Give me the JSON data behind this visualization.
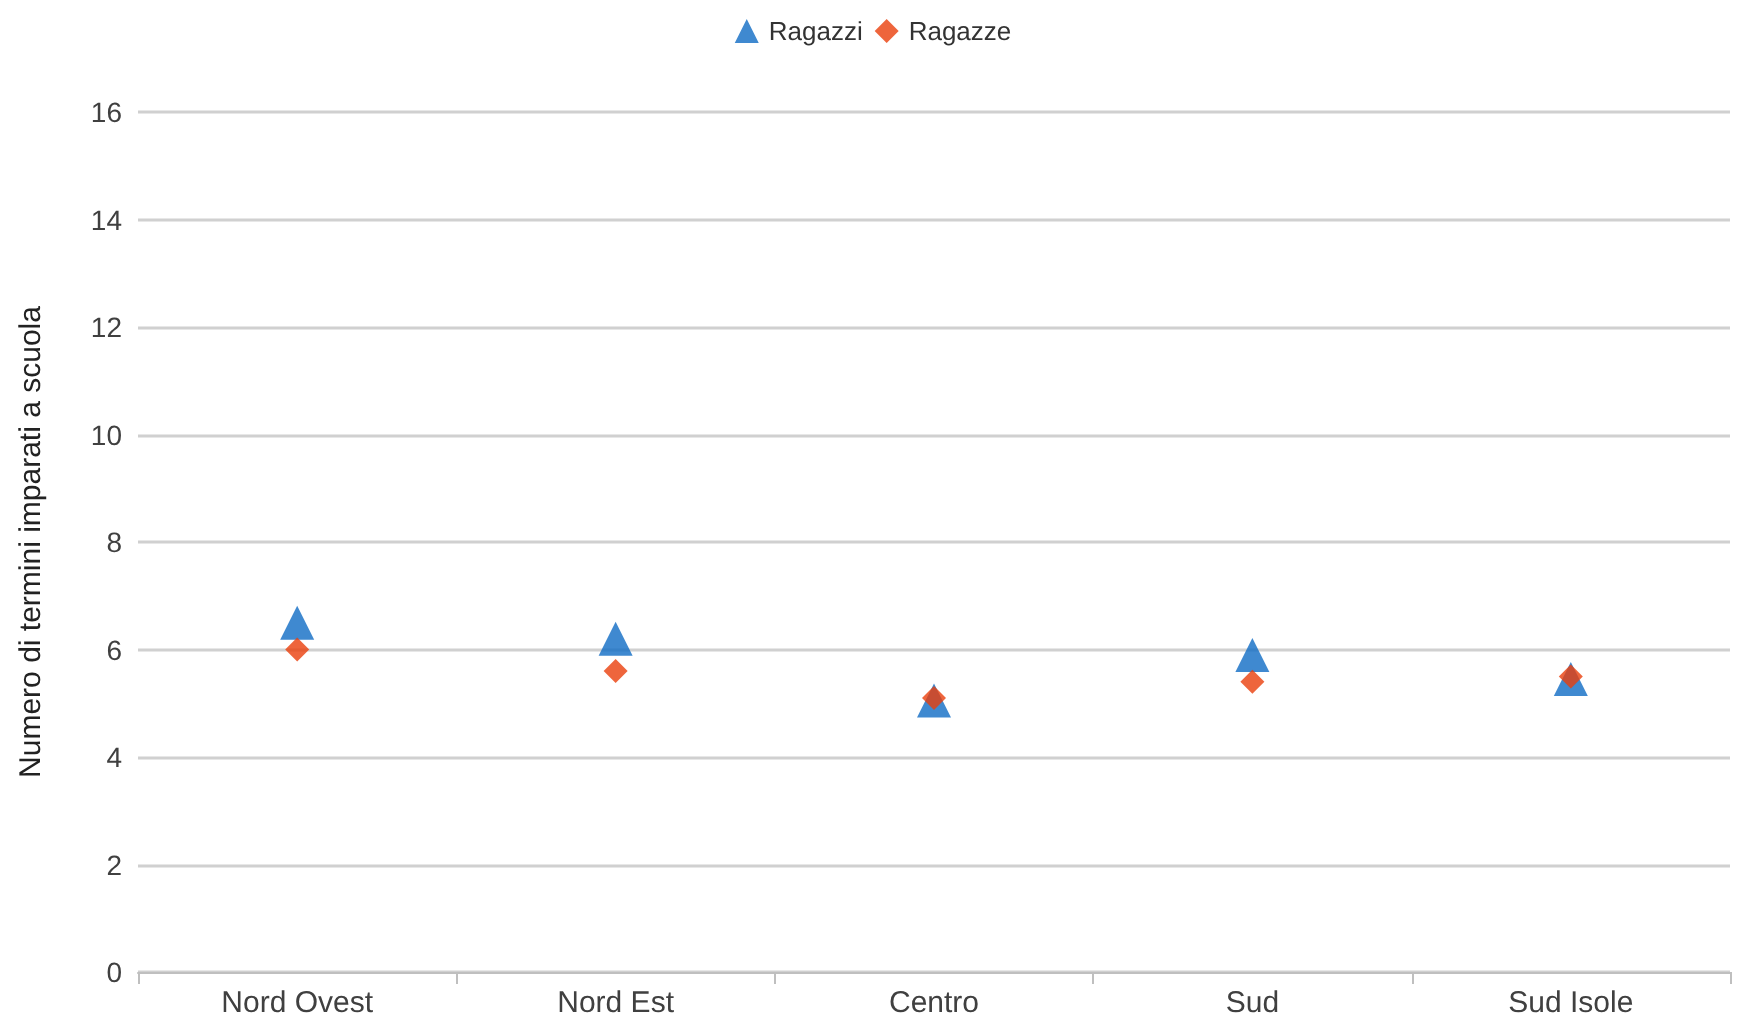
{
  "chart_data": {
    "type": "scatter",
    "ylabel": "Numero di termini imparati a scuola",
    "categories": [
      "Nord Ovest",
      "Nord Est",
      "Centro",
      "Sud",
      "Sud Isole"
    ],
    "series": [
      {
        "name": "Ragazzi",
        "color": "#0f6bc4",
        "marker": "triangle",
        "values": [
          6.5,
          6.2,
          5.05,
          5.9,
          5.45
        ]
      },
      {
        "name": "Ragazze",
        "color": "#ea3f0b",
        "marker": "diamond",
        "values": [
          6.0,
          5.6,
          5.1,
          5.4,
          5.5
        ]
      }
    ],
    "ylim": [
      0,
      16
    ],
    "yticks": [
      0,
      2,
      4,
      6,
      8,
      10,
      12,
      14,
      16
    ],
    "grid": "y",
    "legend": "top"
  }
}
